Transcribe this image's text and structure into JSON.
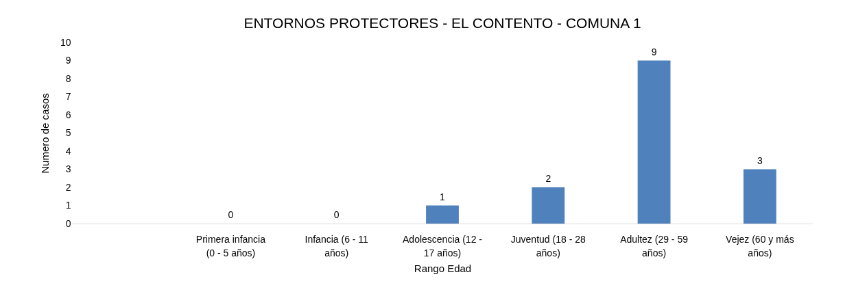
{
  "chart_data": {
    "type": "bar",
    "title": "ENTORNOS PROTECTORES - EL CONTENTO - COMUNA 1",
    "xlabel": "Rango Edad",
    "ylabel": "Numero de casos",
    "categories": [
      null,
      "Primera infancia (0 - 5 años)",
      "Infancia (6 - 11 años)",
      "Adolescencia (12 - 17 años)",
      "Juventud (18 - 28 años)",
      "Adultez (29 - 59 años)",
      "Vejez (60 y más años)"
    ],
    "values": [
      null,
      0,
      0,
      1,
      2,
      9,
      3
    ],
    "color": "#4f81bd",
    "ylim": [
      0,
      10
    ],
    "yticks": [
      0,
      1,
      2,
      3,
      4,
      5,
      6,
      7,
      8,
      9,
      10
    ],
    "data_labels": true,
    "grid": false
  }
}
